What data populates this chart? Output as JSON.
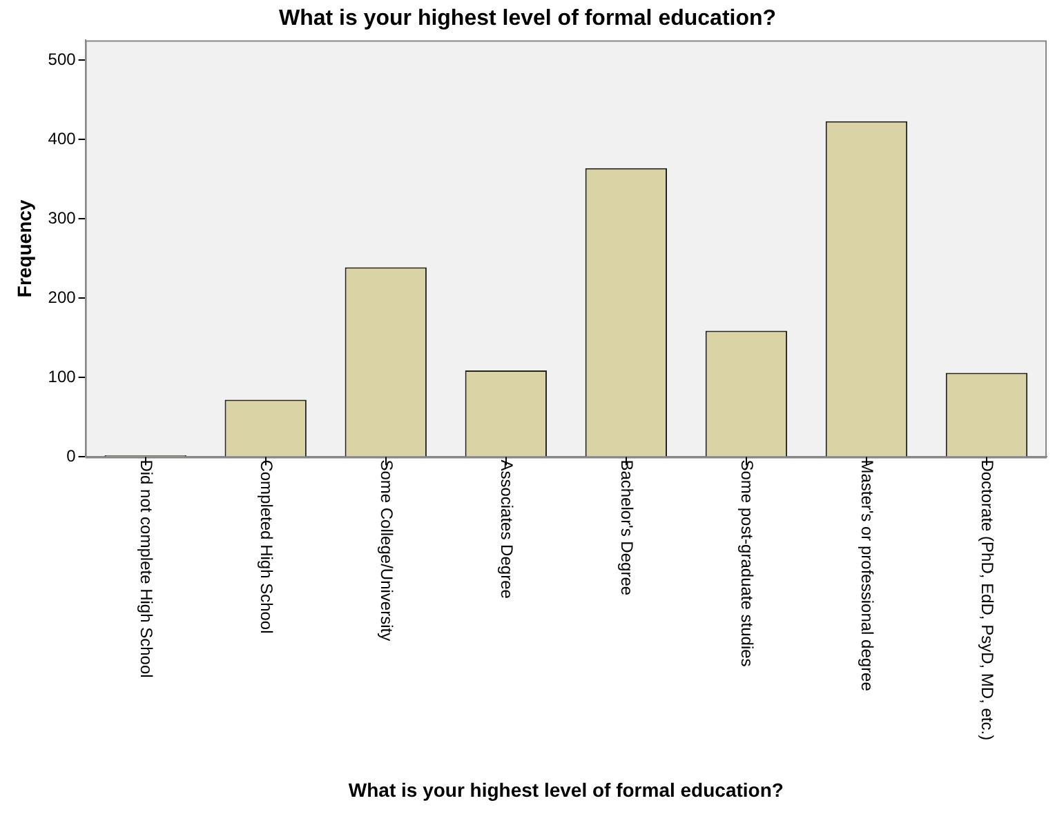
{
  "chart_data": {
    "type": "bar",
    "title": "What is your highest level of formal education?",
    "xlabel": "What is your highest level of formal education?",
    "ylabel": "Frequency",
    "categories": [
      "Did not complete High School",
      "Completed High School",
      "Some College/University",
      "Associates Degree",
      "Bachelor's Degree",
      "Some post-graduate studies",
      "Master's or professional degree",
      "Doctorate (PhD, EdD, PsyD, MD, etc.)"
    ],
    "values": [
      2,
      72,
      239,
      109,
      364,
      159,
      423,
      106
    ],
    "color": "#d9d3a5",
    "ylim": [
      0,
      525
    ],
    "yticks": [
      0,
      100,
      200,
      300,
      400,
      500
    ],
    "grid": false,
    "legend": false
  }
}
